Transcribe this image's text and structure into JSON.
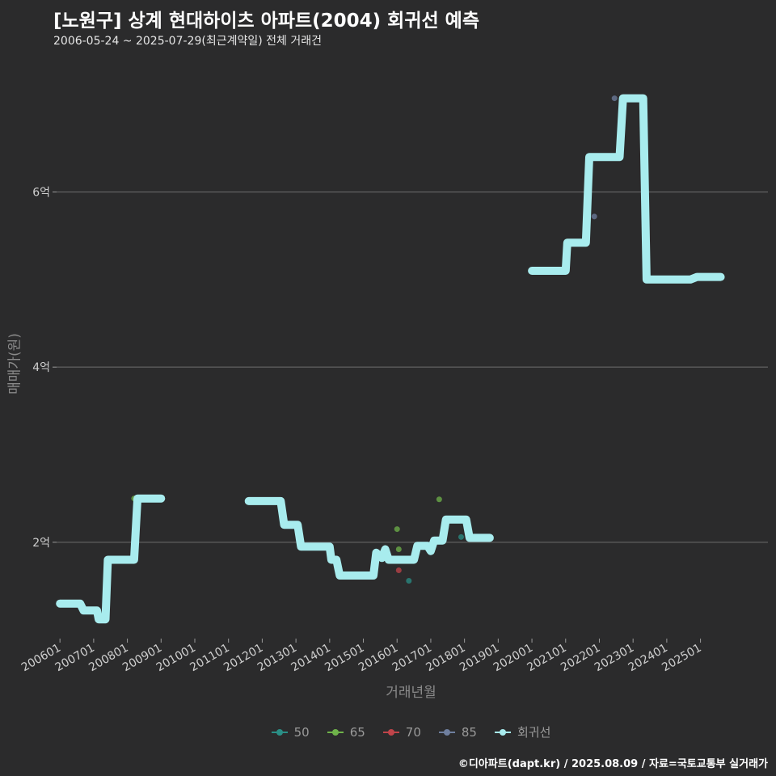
{
  "header": {
    "title": "[노원구] 상계 현대하이츠 아파트(2004) 회귀선 예측",
    "subtitle": "2006-05-24 ~ 2025-07-29(최근계약일) 전체 거래건"
  },
  "footer": "©디아파트(dapt.kr) / 2025.08.09 / 자료=국토교통부 실거래가",
  "colors": {
    "background": "#2b2b2c",
    "grid": "#6e6e6e",
    "regression": "#a8ecee",
    "s50": "#2a8f86",
    "s65": "#6fb34a",
    "s70": "#c0444a",
    "s85": "#6f7f9f"
  },
  "chart_data": {
    "type": "line",
    "title": "[노원구] 상계 현대하이츠 아파트(2004) 회귀선 예측",
    "xlabel": "거래년월",
    "ylabel": "매매가(원)",
    "xlim": [
      2005.9,
      2027.0
    ],
    "ylim": [
      0.9,
      7.5
    ],
    "y_unit": "억",
    "y_ticks": [
      2,
      4,
      6
    ],
    "y_tick_labels": [
      "2억",
      "4억",
      "6억"
    ],
    "x_ticks": [
      2006,
      2007,
      2008,
      2009,
      2010,
      2011,
      2012,
      2013,
      2014,
      2015,
      2016,
      2017,
      2018,
      2019,
      2020,
      2021,
      2022,
      2023,
      2024,
      2025
    ],
    "x_tick_labels": [
      "200601",
      "200701",
      "200801",
      "200901",
      "201001",
      "201101",
      "201201",
      "201301",
      "201401",
      "201501",
      "201601",
      "201701",
      "201801",
      "201901",
      "202001",
      "202101",
      "202201",
      "202301",
      "202401",
      "202501"
    ],
    "legend": [
      "50",
      "65",
      "70",
      "85",
      "회귀선"
    ],
    "series": [
      {
        "name": "회귀선",
        "type": "line",
        "segments": [
          [
            [
              2006.0,
              1.3
            ],
            [
              2006.6,
              1.3
            ],
            [
              2006.7,
              1.22
            ],
            [
              2007.1,
              1.22
            ],
            [
              2007.15,
              1.12
            ],
            [
              2007.35,
              1.12
            ],
            [
              2007.42,
              1.8
            ],
            [
              2008.2,
              1.8
            ],
            [
              2008.3,
              2.5
            ],
            [
              2009.0,
              2.5
            ]
          ],
          [
            [
              2011.6,
              2.47
            ],
            [
              2012.55,
              2.47
            ],
            [
              2012.65,
              2.2
            ],
            [
              2013.05,
              2.2
            ],
            [
              2013.15,
              1.95
            ],
            [
              2014.0,
              1.95
            ],
            [
              2014.05,
              1.8
            ],
            [
              2014.2,
              1.8
            ],
            [
              2014.3,
              1.62
            ],
            [
              2015.3,
              1.62
            ],
            [
              2015.38,
              1.88
            ],
            [
              2015.55,
              1.82
            ],
            [
              2015.65,
              1.92
            ],
            [
              2015.75,
              1.8
            ],
            [
              2016.5,
              1.8
            ],
            [
              2016.6,
              1.96
            ],
            [
              2016.9,
              1.96
            ],
            [
              2017.0,
              1.9
            ],
            [
              2017.1,
              2.02
            ],
            [
              2017.35,
              2.02
            ],
            [
              2017.45,
              2.26
            ],
            [
              2018.05,
              2.26
            ],
            [
              2018.15,
              2.05
            ],
            [
              2018.75,
              2.05
            ]
          ],
          [
            [
              2020.0,
              5.1
            ],
            [
              2021.0,
              5.1
            ],
            [
              2021.05,
              5.42
            ],
            [
              2021.6,
              5.42
            ],
            [
              2021.7,
              6.4
            ],
            [
              2022.6,
              6.4
            ],
            [
              2022.7,
              7.07
            ],
            [
              2023.3,
              7.07
            ],
            [
              2023.4,
              5.0
            ],
            [
              2024.7,
              5.0
            ],
            [
              2024.9,
              5.03
            ],
            [
              2025.6,
              5.03
            ]
          ]
        ]
      },
      {
        "name": "50",
        "type": "scatter",
        "points": [
          [
            2016.35,
            1.56
          ],
          [
            2017.9,
            2.06
          ]
        ]
      },
      {
        "name": "65",
        "type": "scatter",
        "points": [
          [
            2016.0,
            2.15
          ],
          [
            2016.05,
            1.92
          ],
          [
            2017.25,
            2.49
          ],
          [
            2016.95,
            1.93
          ],
          [
            2008.2,
            2.5
          ]
        ]
      },
      {
        "name": "70",
        "type": "scatter",
        "points": [
          [
            2016.05,
            1.68
          ]
        ]
      },
      {
        "name": "85",
        "type": "scatter",
        "points": [
          [
            2022.45,
            7.07
          ],
          [
            2021.85,
            5.72
          ],
          [
            2020.6,
            5.1
          ]
        ]
      }
    ]
  }
}
